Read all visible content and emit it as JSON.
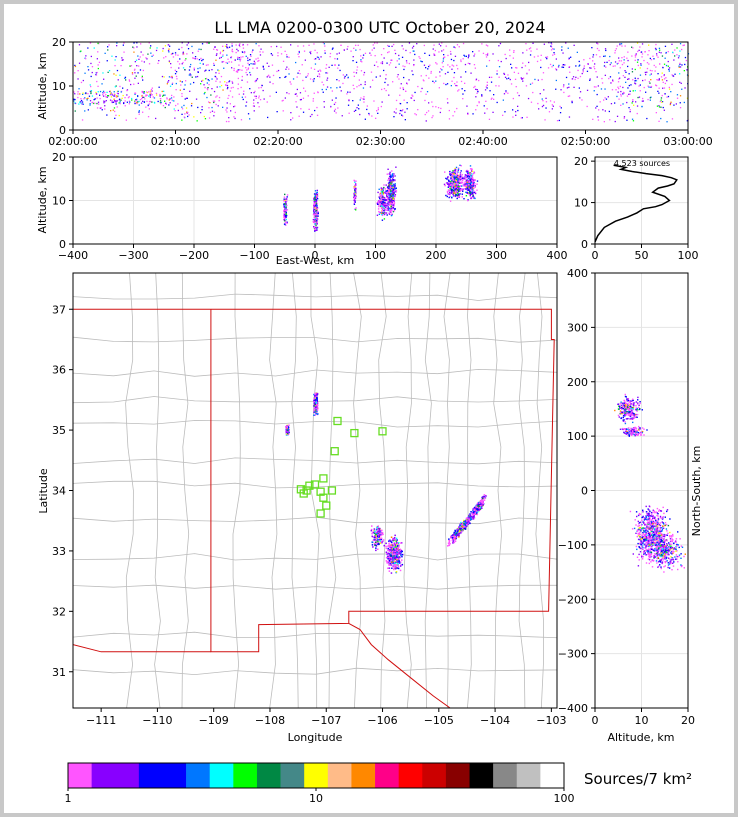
{
  "title": "LL LMA 0200-0300 UTC October 20, 2024",
  "panels": {
    "time_height": {
      "ylabel": "Altitude, km",
      "y_ticks": [
        "0",
        "10",
        "20"
      ],
      "x_ticks": [
        "02:00:00",
        "02:10:00",
        "02:20:00",
        "02:30:00",
        "02:40:00",
        "02:50:00",
        "03:00:00"
      ]
    },
    "ew_height": {
      "ylabel": "Altitude, km",
      "xlabel": "East-West, km",
      "y_ticks": [
        "0",
        "10",
        "20"
      ],
      "x_ticks": [
        "−400",
        "−300",
        "−200",
        "−100",
        "0",
        "100",
        "200",
        "300",
        "400"
      ]
    },
    "histogram": {
      "annotation": "4,523 sources",
      "x_ticks": [
        "0",
        "50",
        "100"
      ],
      "y_ticks": [
        "0",
        "10",
        "20"
      ]
    },
    "plan_view": {
      "xlabel": "Longitude",
      "ylabel": "Latitude",
      "x_ticks": [
        "−111",
        "−110",
        "−109",
        "−108",
        "−107",
        "−106",
        "−105",
        "−104",
        "−103"
      ],
      "y_ticks": [
        "31",
        "32",
        "33",
        "34",
        "35",
        "36",
        "37"
      ]
    },
    "ns_height": {
      "xlabel": "Altitude, km",
      "ylabel": "North-South, km",
      "x_ticks": [
        "0",
        "10",
        "20"
      ],
      "y_ticks": [
        "−400",
        "−300",
        "−200",
        "−100",
        "0",
        "100",
        "200",
        "300",
        "400"
      ]
    }
  },
  "colorbar": {
    "label": "Sources/7 km²",
    "tick_labels": [
      "1",
      "10",
      "100"
    ],
    "colors": [
      "#ff55ff",
      "#8800ff",
      "#8800ff",
      "#0000ff",
      "#0000ff",
      "#0077ff",
      "#00ffff",
      "#00ff00",
      "#008844",
      "#448888",
      "#ffff00",
      "#ffbb88",
      "#ff8800",
      "#ff0088",
      "#ff0000",
      "#cc0000",
      "#880000",
      "#000000",
      "#888888",
      "#c0c0c0",
      "#ffffff"
    ]
  },
  "chart_data": [
    {
      "type": "scatter",
      "title": "LL LMA 0200-0300 UTC October 20, 2024",
      "xlabel": "",
      "ylabel": "Altitude, km",
      "x_range": [
        "02:00:00",
        "03:00:00"
      ],
      "ylim": [
        0,
        20
      ],
      "description": "Time-height source density"
    },
    {
      "type": "scatter",
      "xlabel": "East-West, km",
      "ylabel": "Altitude, km",
      "xlim": [
        -400,
        400
      ],
      "ylim": [
        0,
        20
      ],
      "clusters": [
        {
          "x": -50,
          "y": 8
        },
        {
          "x": 0,
          "y": 8
        },
        {
          "x": 65,
          "y": 12
        },
        {
          "x": 110,
          "y": 10
        },
        {
          "x": 125,
          "y": 12
        },
        {
          "x": 230,
          "y": 14
        },
        {
          "x": 255,
          "y": 14
        }
      ]
    },
    {
      "type": "line",
      "annotation": "4,523 sources",
      "xlim": [
        0,
        100
      ],
      "ylim": [
        0,
        21
      ],
      "x": [
        0,
        3,
        10,
        22,
        35,
        45,
        52,
        65,
        72,
        80,
        75,
        62,
        68,
        78,
        85,
        88,
        82,
        72,
        55,
        40,
        28,
        33,
        20
      ],
      "y": [
        0.5,
        2,
        4,
        5.5,
        6.5,
        7.5,
        8.5,
        9,
        9.5,
        10.5,
        11.5,
        12.5,
        13.5,
        14,
        14.5,
        15.5,
        16,
        16.5,
        17,
        17.5,
        18,
        18.5,
        19
      ]
    },
    {
      "type": "scatter",
      "xlabel": "Longitude",
      "ylabel": "Latitude",
      "xlim": [
        -111.5,
        -102.9
      ],
      "ylim": [
        30.4,
        37.6
      ],
      "stations": [
        {
          "lon": -106.8,
          "lat": 35.15
        },
        {
          "lon": -106.5,
          "lat": 34.95
        },
        {
          "lon": -106.0,
          "lat": 34.98
        },
        {
          "lon": -106.85,
          "lat": 34.65
        },
        {
          "lon": -107.05,
          "lat": 34.2
        },
        {
          "lon": -107.2,
          "lat": 34.1
        },
        {
          "lon": -107.3,
          "lat": 34.08
        },
        {
          "lon": -107.35,
          "lat": 34.0
        },
        {
          "lon": -107.45,
          "lat": 34.02
        },
        {
          "lon": -107.4,
          "lat": 33.95
        },
        {
          "lon": -107.1,
          "lat": 33.98
        },
        {
          "lon": -106.9,
          "lat": 34.0
        },
        {
          "lon": -107.05,
          "lat": 33.88
        },
        {
          "lon": -107.0,
          "lat": 33.75
        },
        {
          "lon": -107.1,
          "lat": 33.62
        }
      ],
      "clusters": [
        {
          "lon": -107.2,
          "lat": 35.45
        },
        {
          "lon": -107.7,
          "lat": 35.0
        },
        {
          "lon": -105.8,
          "lat": 32.95
        },
        {
          "lon": -106.1,
          "lat": 33.25
        },
        {
          "lon": -104.6,
          "lat": 33.4
        },
        {
          "lon": -104.3,
          "lat": 33.75
        }
      ]
    },
    {
      "type": "scatter",
      "xlabel": "Altitude, km",
      "ylabel": "North-South, km",
      "xlim": [
        0,
        20
      ],
      "ylim": [
        -400,
        400
      ],
      "clusters": [
        {
          "x": 7,
          "y": 150
        },
        {
          "x": 8,
          "y": 110
        },
        {
          "x": 12,
          "y": -80
        },
        {
          "x": 15,
          "y": -110
        }
      ]
    }
  ]
}
